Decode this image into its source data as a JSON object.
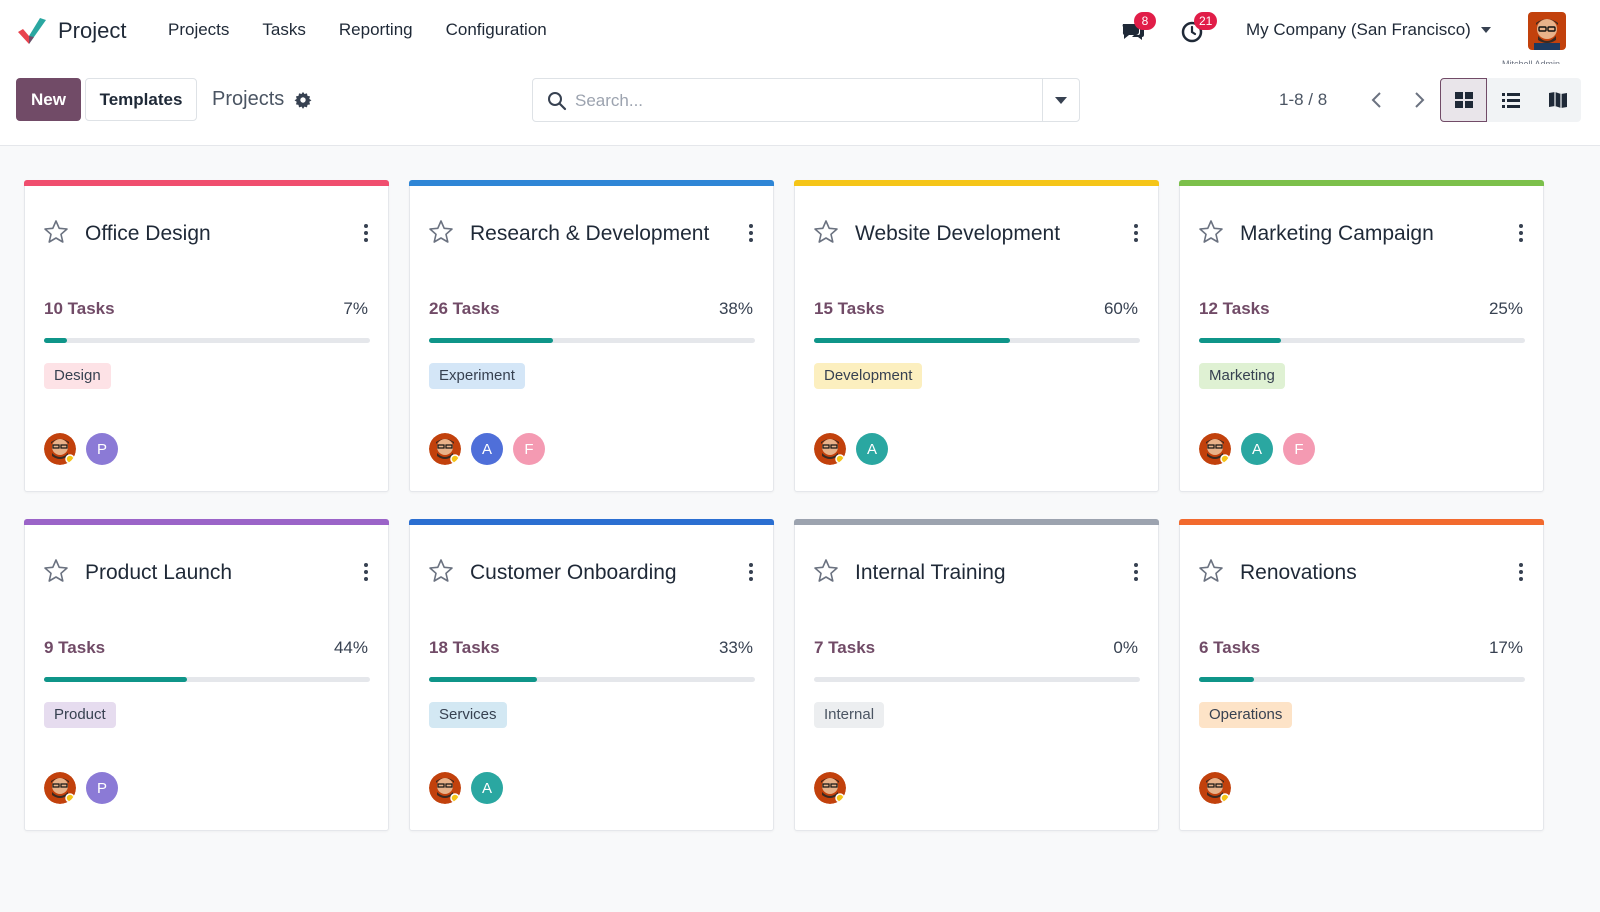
{
  "app": {
    "name": "Project"
  },
  "menu": [
    "Projects",
    "Tasks",
    "Reporting",
    "Configuration"
  ],
  "systray": {
    "messages_badge": "8",
    "activities_badge": "21",
    "company": "My Company (San Francisco)",
    "user": "Mitchell Admin"
  },
  "control_panel": {
    "new_label": "New",
    "templates_label": "Templates",
    "breadcrumb": "Projects",
    "search_placeholder": "Search...",
    "pager": "1-8 / 8"
  },
  "colors": {
    "accent": "#714b67",
    "progress": "#0f9589",
    "badge": "#e11d48"
  },
  "projects": [
    {
      "name": "Office Design",
      "tasks": "10 Tasks",
      "percent": "7%",
      "progress": 0.07,
      "color": "#f04e6e",
      "tag": "Design",
      "tag_bg": "#fde2e6",
      "tag_fg": "#374151",
      "members": [
        {
          "type": "photo"
        },
        {
          "initial": "P",
          "color": "#8b7ad6"
        }
      ]
    },
    {
      "name": "Research & Development",
      "tasks": "26 Tasks",
      "percent": "38%",
      "progress": 0.38,
      "color": "#2f86d6",
      "tag": "Experiment",
      "tag_bg": "#d4e6f7",
      "tag_fg": "#374151",
      "members": [
        {
          "type": "photo"
        },
        {
          "initial": "A",
          "color": "#4f6fd9"
        },
        {
          "initial": "F",
          "color": "#f49ab2"
        }
      ]
    },
    {
      "name": "Website Development",
      "tasks": "15 Tasks",
      "percent": "60%",
      "progress": 0.6,
      "color": "#f5c518",
      "tag": "Development",
      "tag_bg": "#fcefbf",
      "tag_fg": "#374151",
      "members": [
        {
          "type": "photo"
        },
        {
          "initial": "A",
          "color": "#2aa7a1"
        }
      ]
    },
    {
      "name": "Marketing Campaign",
      "tasks": "12 Tasks",
      "percent": "25%",
      "progress": 0.25,
      "color": "#7cc04b",
      "tag": "Marketing",
      "tag_bg": "#dff1d3",
      "tag_fg": "#374151",
      "members": [
        {
          "type": "photo"
        },
        {
          "initial": "A",
          "color": "#2aa7a1"
        },
        {
          "initial": "F",
          "color": "#f49ab2"
        }
      ]
    },
    {
      "name": "Product Launch",
      "tasks": "9 Tasks",
      "percent": "44%",
      "progress": 0.44,
      "color": "#9b64c8",
      "tag": "Product",
      "tag_bg": "#e6dcef",
      "tag_fg": "#374151",
      "members": [
        {
          "type": "photo"
        },
        {
          "initial": "P",
          "color": "#8b7ad6"
        }
      ]
    },
    {
      "name": "Customer Onboarding",
      "tasks": "18 Tasks",
      "percent": "33%",
      "progress": 0.33,
      "color": "#2b6fd1",
      "tag": "Services",
      "tag_bg": "#d3e8f3",
      "tag_fg": "#374151",
      "members": [
        {
          "type": "photo"
        },
        {
          "initial": "A",
          "color": "#2aa7a1"
        }
      ]
    },
    {
      "name": "Internal Training",
      "tasks": "7 Tasks",
      "percent": "0%",
      "progress": 0.0,
      "color": "#9ca3af",
      "tag": "Internal",
      "tag_bg": "#eceef0",
      "tag_fg": "#4b5563",
      "members": [
        {
          "type": "photo"
        }
      ]
    },
    {
      "name": "Renovations",
      "tasks": "6 Tasks",
      "percent": "17%",
      "progress": 0.17,
      "color": "#f26a2e",
      "tag": "Operations",
      "tag_bg": "#fde3c7",
      "tag_fg": "#374151",
      "members": [
        {
          "type": "photo"
        }
      ]
    }
  ]
}
